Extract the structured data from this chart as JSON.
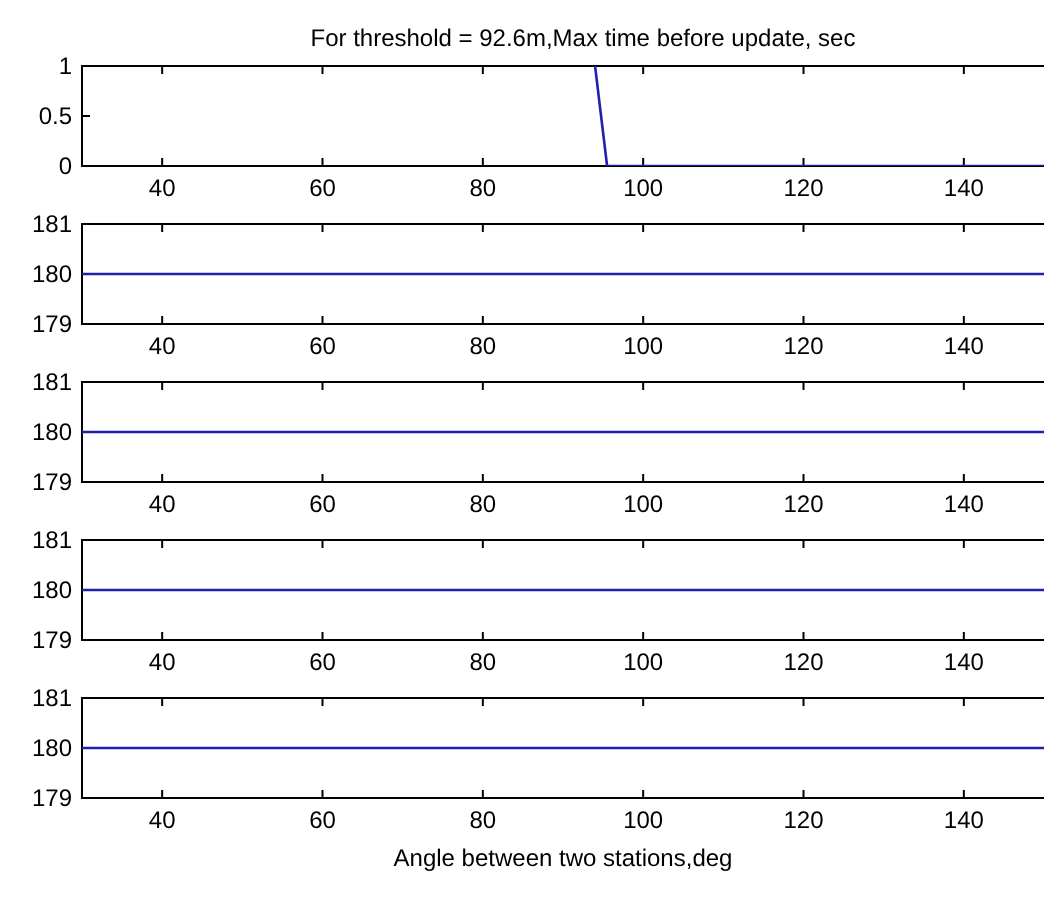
{
  "chart_data": [
    {
      "type": "line",
      "title": "For threshold = 92.6m,Max time before update, sec",
      "x": [
        94,
        95.5,
        150
      ],
      "series": [
        {
          "color": "#2020b0",
          "values": [
            1,
            0,
            0
          ]
        }
      ],
      "xlim": [
        30,
        150
      ],
      "xticks": [
        40,
        60,
        80,
        100,
        120,
        140
      ],
      "ylim": [
        0,
        1
      ],
      "yticks": [
        0,
        0.5,
        1
      ]
    },
    {
      "type": "line",
      "x": [
        30,
        150
      ],
      "series": [
        {
          "color": "#2020b0",
          "values": [
            180,
            180
          ]
        }
      ],
      "xlim": [
        30,
        150
      ],
      "xticks": [
        40,
        60,
        80,
        100,
        120,
        140
      ],
      "ylim": [
        179,
        181
      ],
      "yticks": [
        179,
        180,
        181
      ]
    },
    {
      "type": "line",
      "x": [
        30,
        150
      ],
      "series": [
        {
          "color": "#2020b0",
          "values": [
            180,
            180
          ]
        }
      ],
      "xlim": [
        30,
        150
      ],
      "xticks": [
        40,
        60,
        80,
        100,
        120,
        140
      ],
      "ylim": [
        179,
        181
      ],
      "yticks": [
        179,
        180,
        181
      ]
    },
    {
      "type": "line",
      "x": [
        30,
        150
      ],
      "series": [
        {
          "color": "#2020b0",
          "values": [
            180,
            180
          ]
        }
      ],
      "xlim": [
        30,
        150
      ],
      "xticks": [
        40,
        60,
        80,
        100,
        120,
        140
      ],
      "ylim": [
        179,
        181
      ],
      "yticks": [
        179,
        180,
        181
      ]
    },
    {
      "type": "line",
      "xlabel": "Angle between two stations,deg",
      "x": [
        30,
        150
      ],
      "series": [
        {
          "color": "#2020b0",
          "values": [
            180,
            180
          ]
        }
      ],
      "xlim": [
        30,
        150
      ],
      "xticks": [
        40,
        60,
        80,
        100,
        120,
        140
      ],
      "ylim": [
        179,
        181
      ],
      "yticks": [
        179,
        180,
        181
      ]
    }
  ]
}
